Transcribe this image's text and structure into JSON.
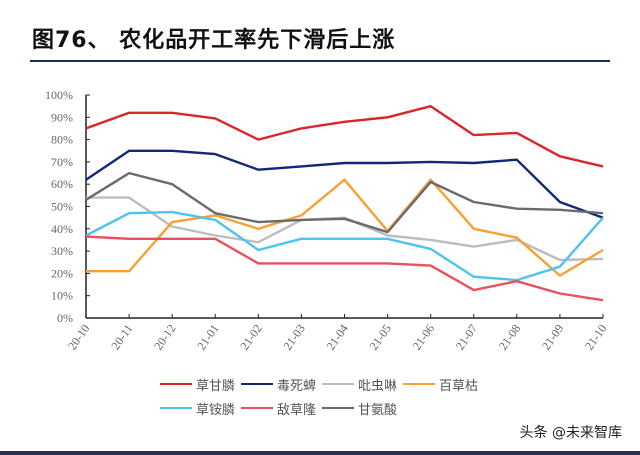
{
  "title": "图76、 农化品开工率先下滑后上涨",
  "watermark": "头条 @未来智库",
  "chart_data": {
    "type": "line",
    "title": "",
    "xlabel": "",
    "ylabel": "",
    "ylim": [
      0,
      100
    ],
    "yticks": [
      "0%",
      "10%",
      "20%",
      "30%",
      "40%",
      "50%",
      "60%",
      "70%",
      "80%",
      "90%",
      "100%"
    ],
    "categories": [
      "20-10",
      "20-11",
      "20-12",
      "21-01",
      "21-02",
      "21-03",
      "21-04",
      "21-05",
      "21-06",
      "21-07",
      "21-08",
      "21-09",
      "21-10"
    ],
    "grid": false,
    "legend": "bottom",
    "series": [
      {
        "name": "草甘膦",
        "color": "#d9262b",
        "values": [
          85,
          92,
          92,
          89.5,
          80,
          85,
          88,
          90,
          95,
          82,
          83,
          72.5,
          68
        ]
      },
      {
        "name": "毒死蜱",
        "color": "#12277a",
        "values": [
          62,
          75,
          75,
          73.5,
          66.5,
          68,
          69.5,
          69.5,
          70,
          69.5,
          71,
          52,
          45
        ]
      },
      {
        "name": "吡虫啉",
        "color": "#bdbdbd",
        "values": [
          54,
          54,
          41,
          37,
          34,
          44,
          45,
          37,
          35,
          32,
          35,
          26,
          26.5
        ]
      },
      {
        "name": "百草枯",
        "color": "#f7a035",
        "values": [
          21,
          21,
          43,
          46,
          40,
          46,
          62,
          39,
          62,
          40,
          36,
          19,
          30.5
        ]
      },
      {
        "name": "草铵膦",
        "color": "#4fc3ef",
        "values": [
          37,
          47,
          47.5,
          44,
          30.5,
          35.5,
          35.5,
          35.5,
          31,
          18.5,
          17,
          23,
          45
        ]
      },
      {
        "name": "敌草隆",
        "color": "#e8515d",
        "values": [
          36.5,
          35.5,
          35.5,
          35.5,
          24.5,
          24.5,
          24.5,
          24.5,
          23.5,
          12.5,
          16.5,
          11,
          8
        ]
      },
      {
        "name": "甘氨酸",
        "color": "#6b6b6b",
        "values": [
          53,
          65,
          60,
          47,
          43,
          44,
          44.5,
          38.5,
          61,
          52,
          49,
          48.5,
          47
        ]
      }
    ]
  }
}
